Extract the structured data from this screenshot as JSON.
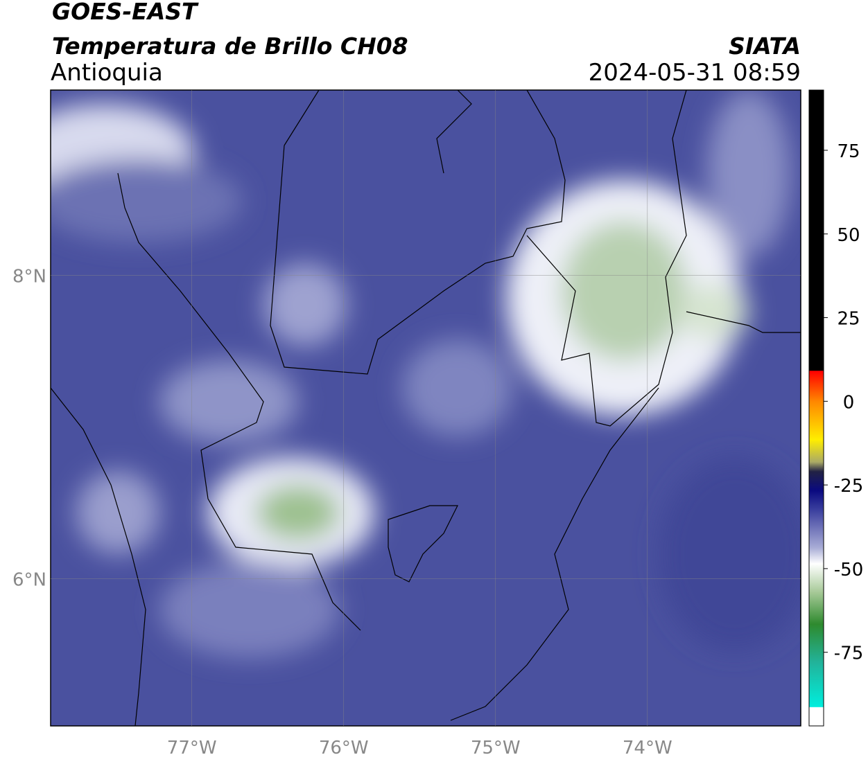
{
  "header": {
    "satellite": "GOES-EAST",
    "product": "Temperatura de Brillo CH08",
    "region": "Antioquia",
    "agency": "SIATA",
    "timestamp": "2024-05-31 08:59"
  },
  "map": {
    "xlim": [
      -77.93,
      -72.99
    ],
    "ylim": [
      5.03,
      9.22
    ],
    "xticks": [
      {
        "value": -77,
        "label": "77°W"
      },
      {
        "value": -76,
        "label": "76°W"
      },
      {
        "value": -75,
        "label": "75°W"
      },
      {
        "value": -74,
        "label": "74°W"
      }
    ],
    "yticks": [
      {
        "value": 8,
        "label": "8°N"
      },
      {
        "value": 6,
        "label": "6°N"
      }
    ]
  },
  "colorbar": {
    "lim": [
      -97,
      93
    ],
    "ticks": [
      75,
      50,
      25,
      0,
      -25,
      -50,
      -75
    ]
  }
}
